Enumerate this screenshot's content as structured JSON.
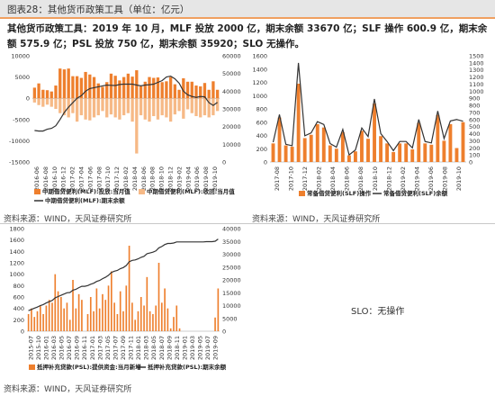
{
  "figure_title": "图表28：其他货币政策工具（单位：亿元）",
  "summary_text": "其他货币政策工具：2019 年 10 月，MLF 投放 2000 亿，期末余额 33670 亿；SLF 操作 600.9 亿，期末余额 575.9 亿；PSL 投放 750 亿，期末余额 35920；SLO 无操作。",
  "source_1": "资料来源：WIND，天风证券研究所",
  "source_2": "资料来源：WIND，天风证券研究所",
  "source_3": "资料来源：WIND，天风证券研究所",
  "slo_note": "SLO：无操作",
  "colors": {
    "bar": "#ee7f2d",
    "bar_light": "#f6b986",
    "line": "#333333",
    "header_bg": "#e6e6e6",
    "accent": "#f0a060"
  },
  "chart_data": [
    {
      "type": "bar",
      "x_ticks": [
        "2016-06",
        "2016-08",
        "2016-10",
        "2016-12",
        "2017-02",
        "2017-04",
        "2017-06",
        "2017-08",
        "2017-10",
        "2017-12",
        "2018-02",
        "2018-04",
        "2018-06",
        "2018-08",
        "2018-10",
        "2018-12",
        "2019-02",
        "2019-04",
        "2019-06",
        "2019-08",
        "2019-10"
      ],
      "ylim_left": [
        -15000,
        10000
      ],
      "yticks_left": [
        -15000,
        -10000,
        -5000,
        0,
        5000,
        10000
      ],
      "ylim_right": [
        0,
        60000
      ],
      "yticks_right": [
        0,
        10000,
        20000,
        30000,
        40000,
        50000,
        60000
      ],
      "series": [
        {
          "name": "中期借贷便利(MLF):投放:当月值",
          "axis": "left",
          "values": [
            2500,
            3500,
            2000,
            1900,
            1600,
            3000,
            7000,
            6800,
            7000,
            5200,
            5200,
            4800,
            6200,
            5600,
            5000,
            3500,
            2700,
            3800,
            5800,
            5300,
            4200,
            5000,
            5800,
            5100,
            6600,
            2800,
            3900,
            5000,
            4800,
            4900,
            3800,
            4000,
            5000,
            3300,
            2000,
            4700,
            3900,
            3900,
            3000,
            2800,
            3600,
            2000,
            4000,
            2000
          ]
        },
        {
          "name": "中期借贷便利(MLF):收回:当月值",
          "axis": "left",
          "values": [
            -1000,
            -1600,
            -2000,
            -1500,
            -2000,
            -2500,
            -3500,
            -4000,
            -4500,
            -3500,
            -5500,
            -4000,
            -5000,
            -5200,
            -4500,
            -4000,
            -3000,
            -4500,
            -3800,
            -4500,
            -5000,
            -4000,
            -3500,
            -5500,
            -13000,
            -4000,
            -5000,
            -5500,
            -4200,
            -5000,
            -4000,
            -4500,
            -5500,
            -3800,
            -3000,
            -4800,
            -2600,
            -3500,
            -4200,
            -4500,
            -4000,
            -4500,
            -4000,
            -3000
          ]
        },
        {
          "name": "中期借贷便利(MLF):期末余额",
          "axis": "right",
          "values": [
            17800,
            17500,
            17500,
            18500,
            19000,
            20500,
            24000,
            28000,
            31000,
            33500,
            36000,
            37500,
            40000,
            41500,
            42000,
            42500,
            43000,
            43500,
            43300,
            43200,
            43800,
            44000,
            44000,
            44000,
            43500,
            43000,
            43500,
            43700,
            44000,
            45000,
            46000,
            48000,
            48500,
            47000,
            44500,
            40000,
            38000,
            37000,
            36500,
            37000,
            36800,
            33500,
            32000,
            33670
          ]
        }
      ]
    },
    {
      "type": "bar",
      "x_ticks": [
        "2017-08",
        "2017-10",
        "2017-12",
        "2018-02",
        "2018-04",
        "2018-06",
        "2018-08",
        "2018-10",
        "2018-12",
        "2019-02",
        "2019-04",
        "2019-06",
        "2019-08",
        "2019-10"
      ],
      "ylim_left": [
        0,
        1600
      ],
      "yticks_left": [
        0,
        200,
        400,
        600,
        800,
        1000,
        1200,
        1400,
        1600
      ],
      "ylim_right": [
        0,
        1500
      ],
      "yticks_right": [
        0,
        100,
        200,
        300,
        400,
        500,
        600,
        700,
        800,
        900,
        1000,
        1100,
        1200,
        1300,
        1400,
        1500
      ],
      "series": [
        {
          "name": "常备借贷便利(SLF)操作",
          "axis": "left",
          "values": [
            280,
            670,
            250,
            230,
            1180,
            360,
            410,
            570,
            520,
            250,
            200,
            450,
            100,
            160,
            470,
            350,
            880,
            390,
            280,
            150,
            280,
            280,
            190,
            590,
            280,
            260,
            710,
            320,
            570,
            210,
            600
          ]
        },
        {
          "name": "常备借贷便利(SLF)余额",
          "axis": "right",
          "values": [
            280,
            670,
            250,
            230,
            1400,
            370,
            410,
            570,
            530,
            260,
            210,
            460,
            100,
            170,
            480,
            360,
            890,
            400,
            290,
            160,
            290,
            290,
            200,
            600,
            290,
            270,
            720,
            330,
            580,
            600,
            576
          ]
        }
      ]
    },
    {
      "type": "bar",
      "x_ticks": [
        "2015-07",
        "2015-10",
        "2016-01",
        "2016-03",
        "2016-05",
        "2016-07",
        "2016-09",
        "2016-11",
        "2017-01",
        "2017-03",
        "2017-05",
        "2017-07",
        "2017-09",
        "2017-11",
        "2018-01",
        "2018-03",
        "2018-05",
        "2018-07",
        "2018-09",
        "2018-11",
        "2019-01",
        "2019-03",
        "2019-05",
        "2019-07",
        "2019-09"
      ],
      "ylim_left": [
        0,
        1800
      ],
      "yticks_left": [
        0,
        200,
        400,
        600,
        800,
        1000,
        1200,
        1400,
        1600,
        1800
      ],
      "ylim_right": [
        0,
        40000
      ],
      "yticks_right": [
        0,
        5000,
        10000,
        15000,
        20000,
        25000,
        30000,
        35000,
        40000
      ],
      "series": [
        {
          "name": "抵押补充贷款(PSL):提供资金:当月新增",
          "axis": "left",
          "values": [
            300,
            400,
            250,
            350,
            450,
            300,
            450,
            550,
            500,
            1000,
            700,
            600,
            400,
            500,
            200,
            900,
            400,
            650,
            550,
            0,
            300,
            600,
            350,
            750,
            400,
            650,
            550,
            800,
            1050,
            500,
            300,
            700,
            350,
            800,
            1500,
            500,
            200,
            350,
            600,
            450,
            950,
            350,
            300,
            450,
            1200,
            500,
            750,
            400,
            50,
            250,
            450,
            50,
            0,
            0,
            0,
            0,
            0,
            0,
            0,
            0,
            0,
            0,
            0,
            240,
            750
          ]
        },
        {
          "name": "抵押补充贷款(PSL):期末余额",
          "axis": "right",
          "values": [
            8000,
            8500,
            9000,
            9400,
            10000,
            10400,
            11000,
            11500,
            12000,
            13000,
            13500,
            14000,
            14500,
            15000,
            15100,
            16000,
            16300,
            17000,
            17500,
            17500,
            17800,
            18300,
            18700,
            19400,
            19800,
            20500,
            21000,
            21800,
            22900,
            23400,
            23700,
            24400,
            24800,
            25600,
            27100,
            27600,
            27800,
            28200,
            28800,
            29200,
            30200,
            30500,
            30800,
            31300,
            32500,
            33000,
            33800,
            34200,
            34200,
            34400,
            34800,
            34800,
            34800,
            34800,
            34800,
            34800,
            34800,
            34800,
            34800,
            34800,
            34900,
            34900,
            34900,
            35100,
            35920
          ]
        }
      ]
    }
  ]
}
